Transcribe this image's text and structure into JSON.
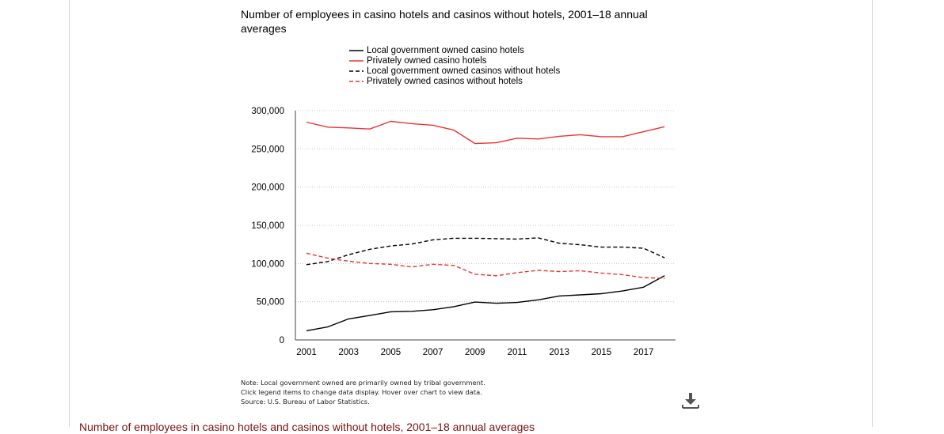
{
  "chart_data": {
    "type": "line",
    "title": "Number of employees in casino hotels and casinos without hotels, 2001–18 annual averages",
    "x": [
      2001,
      2002,
      2003,
      2004,
      2005,
      2006,
      2007,
      2008,
      2009,
      2010,
      2011,
      2012,
      2013,
      2014,
      2015,
      2016,
      2017,
      2018
    ],
    "xticks": [
      "2001",
      "2003",
      "2005",
      "2007",
      "2009",
      "2011",
      "2013",
      "2015",
      "2017"
    ],
    "yticks": [
      "300,000",
      "250,000",
      "200,000",
      "150,000",
      "100,000",
      "50,000",
      "0"
    ],
    "ylim": [
      0,
      300000
    ],
    "grid": true,
    "legend_position": "top",
    "series": [
      {
        "name": "Local government owned casino hotels",
        "color": "#000000",
        "dash": "solid",
        "values": [
          12000,
          17000,
          27500,
          32000,
          36800,
          37500,
          39500,
          43500,
          49500,
          48000,
          49000,
          52500,
          57500,
          59000,
          60500,
          64000,
          69000,
          84000
        ]
      },
      {
        "name": "Privately owned casino hotels",
        "color": "#ee3333",
        "dash": "solid",
        "values": [
          285000,
          278500,
          277500,
          276000,
          286000,
          283000,
          281000,
          274500,
          257000,
          258000,
          264000,
          263000,
          266500,
          268500,
          266000,
          266000,
          272500,
          279000
        ]
      },
      {
        "name": "Local government owned casinos without hotels",
        "color": "#000000",
        "dash": "dashed",
        "values": [
          98500,
          102500,
          111500,
          118500,
          123000,
          125500,
          131000,
          133000,
          133000,
          132500,
          132000,
          133500,
          126500,
          124500,
          121500,
          121500,
          120000,
          107500
        ]
      },
      {
        "name": "Privately owned casinos without hotels",
        "color": "#ee3333",
        "dash": "dashed",
        "values": [
          113500,
          107000,
          103000,
          100000,
          99000,
          95500,
          99000,
          97500,
          86000,
          84000,
          88000,
          91000,
          89500,
          90500,
          87500,
          85500,
          81500,
          80500
        ]
      }
    ]
  },
  "notes": [
    "Note: Local government owned are primarily owned by tribal government.",
    "Click legend items to change data display. Hover over chart to view data.",
    "Source: U.S. Bureau of Labor Statistics."
  ],
  "download": {
    "icon": "download-icon"
  },
  "caption": "Number of employees in casino hotels and casinos without hotels, 2001–18 annual averages"
}
